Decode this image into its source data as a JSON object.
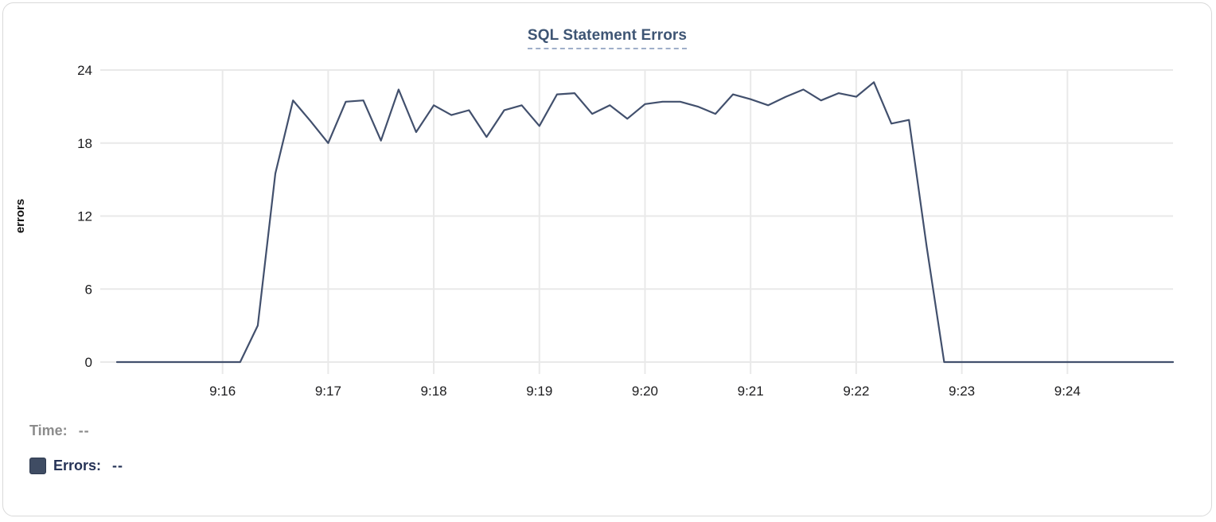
{
  "chart": {
    "title": "SQL Statement Errors"
  },
  "legend": {
    "time_label": "Time:",
    "time_value": "--",
    "errors_label": "Errors:",
    "errors_value": "--"
  },
  "theme": {
    "line_color": "#42506d",
    "swatch_color": "#3f4c63",
    "title_color": "#3e5574",
    "grid_color": "#e9e9e9",
    "tick_text_color": "#1c1c1e",
    "legend_muted_color": "#8c8c8c",
    "legend_dark_color": "#263357",
    "card_border_color": "#d9d9d9"
  },
  "chart_data": {
    "type": "line",
    "title": "SQL Statement Errors",
    "xlabel": "",
    "ylabel": "errors",
    "x_unit": "time of day (9:MM), minutes after 9:00 used as numeric x",
    "xlim_minutes": [
      14.94,
      25.0
    ],
    "ylim": [
      0,
      24
    ],
    "grid": true,
    "legend_position": "bottom-left",
    "x_ticks": [
      {
        "minute": 16,
        "label": "9:16"
      },
      {
        "minute": 17,
        "label": "9:17"
      },
      {
        "minute": 18,
        "label": "9:18"
      },
      {
        "minute": 19,
        "label": "9:19"
      },
      {
        "minute": 20,
        "label": "9:20"
      },
      {
        "minute": 21,
        "label": "9:21"
      },
      {
        "minute": 22,
        "label": "9:22"
      },
      {
        "minute": 23,
        "label": "9:23"
      },
      {
        "minute": 24,
        "label": "9:24"
      }
    ],
    "y_ticks": [
      0,
      6,
      12,
      18,
      24
    ],
    "series": [
      {
        "name": "Errors",
        "color": "#42506d",
        "points": [
          [
            15.0,
            0
          ],
          [
            15.167,
            0
          ],
          [
            15.333,
            0
          ],
          [
            15.5,
            0
          ],
          [
            15.667,
            0
          ],
          [
            15.833,
            0
          ],
          [
            16.0,
            0
          ],
          [
            16.167,
            0
          ],
          [
            16.333,
            3
          ],
          [
            16.5,
            15.5
          ],
          [
            16.667,
            21.5
          ],
          [
            16.833,
            19.8
          ],
          [
            17.0,
            18.0
          ],
          [
            17.167,
            21.4
          ],
          [
            17.333,
            21.5
          ],
          [
            17.5,
            18.2
          ],
          [
            17.667,
            22.4
          ],
          [
            17.833,
            18.9
          ],
          [
            18.0,
            21.1
          ],
          [
            18.167,
            20.3
          ],
          [
            18.333,
            20.7
          ],
          [
            18.5,
            18.5
          ],
          [
            18.667,
            20.7
          ],
          [
            18.833,
            21.1
          ],
          [
            19.0,
            19.4
          ],
          [
            19.167,
            22.0
          ],
          [
            19.333,
            22.1
          ],
          [
            19.5,
            20.4
          ],
          [
            19.667,
            21.1
          ],
          [
            19.833,
            20.0
          ],
          [
            20.0,
            21.2
          ],
          [
            20.167,
            21.4
          ],
          [
            20.333,
            21.4
          ],
          [
            20.5,
            21.0
          ],
          [
            20.667,
            20.4
          ],
          [
            20.833,
            22.0
          ],
          [
            21.0,
            21.6
          ],
          [
            21.167,
            21.1
          ],
          [
            21.333,
            21.8
          ],
          [
            21.5,
            22.4
          ],
          [
            21.667,
            21.5
          ],
          [
            21.833,
            22.1
          ],
          [
            22.0,
            21.8
          ],
          [
            22.167,
            23.0
          ],
          [
            22.333,
            19.6
          ],
          [
            22.5,
            19.9
          ],
          [
            22.667,
            9.5
          ],
          [
            22.833,
            0
          ],
          [
            23.0,
            0
          ],
          [
            23.167,
            0
          ],
          [
            23.333,
            0
          ],
          [
            23.5,
            0
          ],
          [
            23.667,
            0
          ],
          [
            23.833,
            0
          ],
          [
            24.0,
            0
          ],
          [
            24.167,
            0
          ],
          [
            24.333,
            0
          ],
          [
            24.5,
            0
          ],
          [
            24.667,
            0
          ],
          [
            24.833,
            0
          ],
          [
            25.0,
            0
          ]
        ]
      }
    ]
  }
}
